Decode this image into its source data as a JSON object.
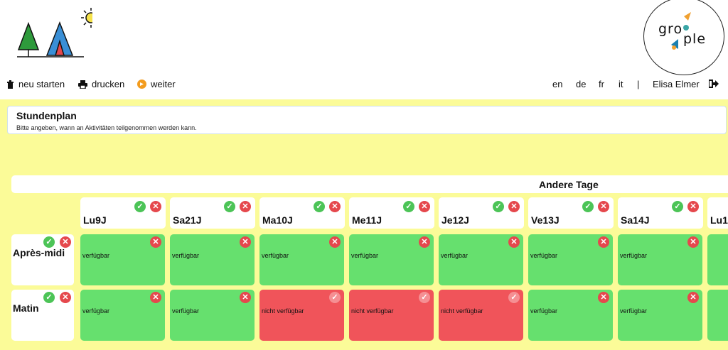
{
  "nav": {
    "restart": "neu starten",
    "print": "drucken",
    "next": "weiter"
  },
  "lang": {
    "en": "en",
    "de": "de",
    "fr": "fr",
    "it": "it",
    "sep": "|"
  },
  "user": {
    "name": "Elisa Elmer"
  },
  "logo": {
    "text_a": "gro",
    "text_b": "ple"
  },
  "panel": {
    "title": "Stundenplan",
    "subtitle": "Bitte angeben, wann an Aktivitäten teilgenommen werden kann."
  },
  "section": {
    "other_days": "Andere Tage"
  },
  "days": [
    "Lu9J",
    "Sa21J",
    "Ma10J",
    "Me11J",
    "Je12J",
    "Ve13J",
    "Sa14J",
    "Lu1"
  ],
  "rows": [
    "Après-midi",
    "Matin"
  ],
  "status": {
    "available": "verfügbar",
    "unavailable": "nicht verfügbar"
  },
  "glyphs": {
    "ok": "✓",
    "no": "✕"
  },
  "colors": {
    "available": "#66e06e",
    "unavailable": "#f0545a",
    "background": "#fbfb98"
  }
}
